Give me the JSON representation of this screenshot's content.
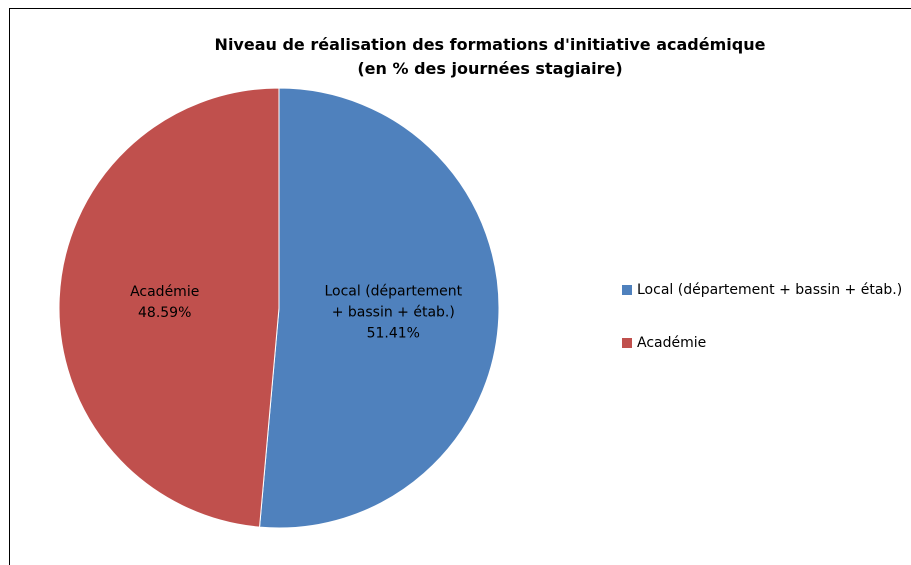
{
  "chart_data": {
    "type": "pie",
    "title": "Niveau de réalisation des formations d'initiative académique (en % des journées stagiaire)",
    "categories": [
      "Local (département + bassin + étab.)",
      "Académie"
    ],
    "values": [
      51.41,
      48.59
    ],
    "value_labels": [
      "51.41%",
      "48.59%"
    ],
    "colors": [
      "#4f81bd",
      "#c0504d"
    ],
    "legend": "right"
  }
}
